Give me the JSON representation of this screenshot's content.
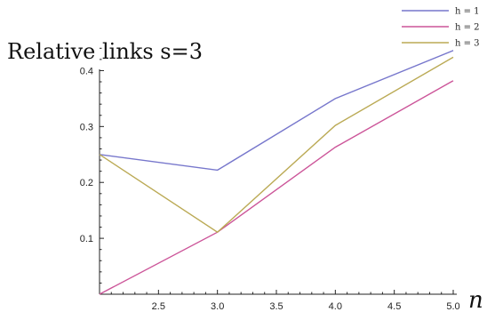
{
  "chart_data": {
    "type": "line",
    "title": "Relative links s=3",
    "xlabel": "n",
    "ylabel": "",
    "xlim": [
      2.0,
      5.0
    ],
    "ylim": [
      0.0,
      0.45
    ],
    "x_ticks": [
      "2.5",
      "3.0",
      "3.5",
      "4.0",
      "4.5",
      "5.0"
    ],
    "y_ticks": [
      "0.1",
      "0.2",
      "0.3",
      "0.4"
    ],
    "x": [
      2,
      3,
      4,
      5
    ],
    "series": [
      {
        "name": "h = 1",
        "color": "#7777cc",
        "values": [
          0.25,
          0.222,
          0.35,
          0.436
        ]
      },
      {
        "name": "h = 2",
        "color": "#cc5599",
        "values": [
          0.0,
          0.111,
          0.263,
          0.382
        ]
      },
      {
        "name": "h = 3",
        "color": "#bbaa55",
        "values": [
          0.25,
          0.111,
          0.302,
          0.424
        ]
      }
    ],
    "legend": "top-right",
    "grid": false
  }
}
